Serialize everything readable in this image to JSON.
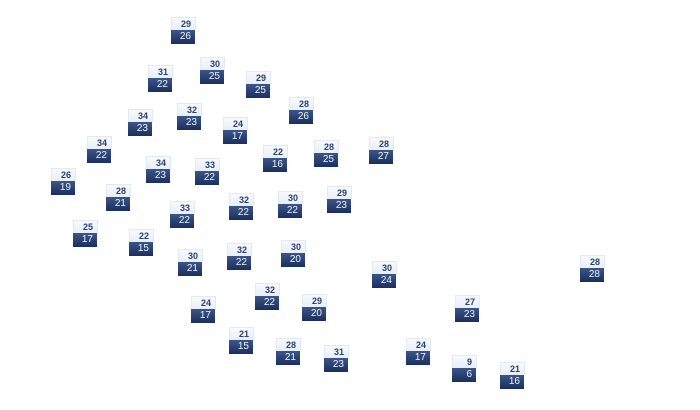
{
  "markers": [
    {
      "high": "29",
      "low": "26"
    },
    {
      "high": "31",
      "low": "22"
    },
    {
      "high": "30",
      "low": "25"
    },
    {
      "high": "29",
      "low": "25"
    },
    {
      "high": "28",
      "low": "26"
    },
    {
      "high": "34",
      "low": "23"
    },
    {
      "high": "32",
      "low": "23"
    },
    {
      "high": "24",
      "low": "17"
    },
    {
      "high": "34",
      "low": "22"
    },
    {
      "high": "22",
      "low": "16"
    },
    {
      "high": "28",
      "low": "25"
    },
    {
      "high": "28",
      "low": "27"
    },
    {
      "high": "34",
      "low": "23"
    },
    {
      "high": "33",
      "low": "22"
    },
    {
      "high": "26",
      "low": "19"
    },
    {
      "high": "28",
      "low": "21"
    },
    {
      "high": "32",
      "low": "22"
    },
    {
      "high": "30",
      "low": "22"
    },
    {
      "high": "29",
      "low": "23"
    },
    {
      "high": "33",
      "low": "22"
    },
    {
      "high": "25",
      "low": "17"
    },
    {
      "high": "22",
      "low": "15"
    },
    {
      "high": "30",
      "low": "21"
    },
    {
      "high": "32",
      "low": "22"
    },
    {
      "high": "30",
      "low": "20"
    },
    {
      "high": "30",
      "low": "24"
    },
    {
      "high": "28",
      "low": "28"
    },
    {
      "high": "24",
      "low": "17"
    },
    {
      "high": "32",
      "low": "22"
    },
    {
      "high": "29",
      "low": "20"
    },
    {
      "high": "27",
      "low": "23"
    },
    {
      "high": "21",
      "low": "15"
    },
    {
      "high": "28",
      "low": "21"
    },
    {
      "high": "31",
      "low": "23"
    },
    {
      "high": "24",
      "low": "17"
    },
    {
      "high": "9",
      "low": "6"
    },
    {
      "high": "21",
      "low": "16"
    }
  ],
  "colors": {
    "high_bg": "#eef2f9",
    "high_text": "#2b4170",
    "low_bg": "#24396a",
    "low_text": "#eef2fa"
  }
}
